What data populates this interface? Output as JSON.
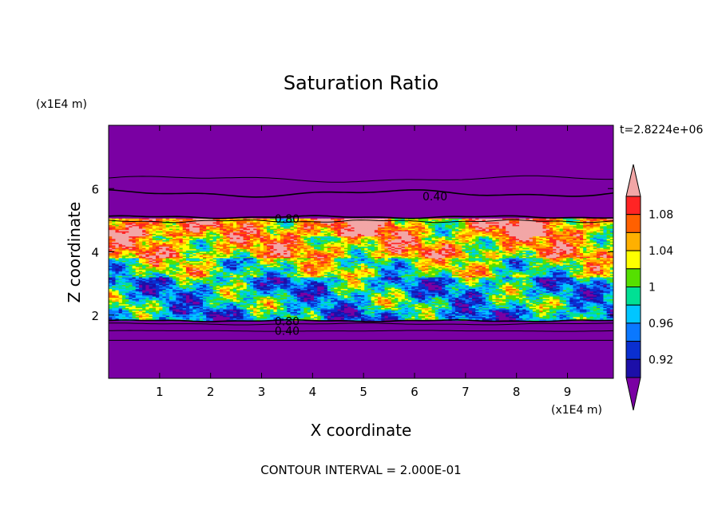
{
  "chart_data": {
    "type": "heatmap",
    "title": "Saturation Ratio",
    "xlabel": "X coordinate",
    "ylabel": "Z coordinate",
    "x_unit": "(x1E4 m)",
    "y_unit": "(x1E4 m)",
    "time_label": "t=2.8224e+06",
    "footer": "CONTOUR INTERVAL = 2.000E-01",
    "xlim": [
      0,
      9.9
    ],
    "ylim": [
      0,
      8
    ],
    "x_ticks": [
      "1",
      "2",
      "3",
      "4",
      "5",
      "6",
      "7",
      "8",
      "9"
    ],
    "x_tick_values": [
      1,
      2,
      3,
      4,
      5,
      6,
      7,
      8,
      9
    ],
    "y_ticks": [
      "2",
      "4",
      "6"
    ],
    "y_tick_values": [
      2,
      4,
      6
    ],
    "contour_labels": [
      {
        "text": "0.40",
        "x": 6.4,
        "z": 5.75
      },
      {
        "text": "0.80",
        "x": 3.5,
        "z": 5.05
      },
      {
        "text": "0.80",
        "x": 3.5,
        "z": 1.8
      },
      {
        "text": "0.40",
        "x": 3.5,
        "z": 1.5
      }
    ],
    "colorbar": {
      "boundaries": [
        0.9,
        0.92,
        0.94,
        0.96,
        0.98,
        1.0,
        1.02,
        1.04,
        1.06,
        1.08,
        1.1
      ],
      "colors": [
        "#5a1ea0",
        "#1c0fa8",
        "#0a2fd0",
        "#0a78ff",
        "#00c6ff",
        "#00e094",
        "#55e000",
        "#ffff00",
        "#ffb000",
        "#ff6000",
        "#ff2424"
      ],
      "over_color": "#f2a6a6",
      "under_color": "#7a00a3",
      "tick_labels": [
        "0.92",
        "0.96",
        "1",
        "1.04",
        "1.08"
      ],
      "tick_values": [
        0.92,
        0.96,
        1.0,
        1.04,
        1.08
      ]
    },
    "colors": {
      "background": "#7a00a3"
    }
  }
}
